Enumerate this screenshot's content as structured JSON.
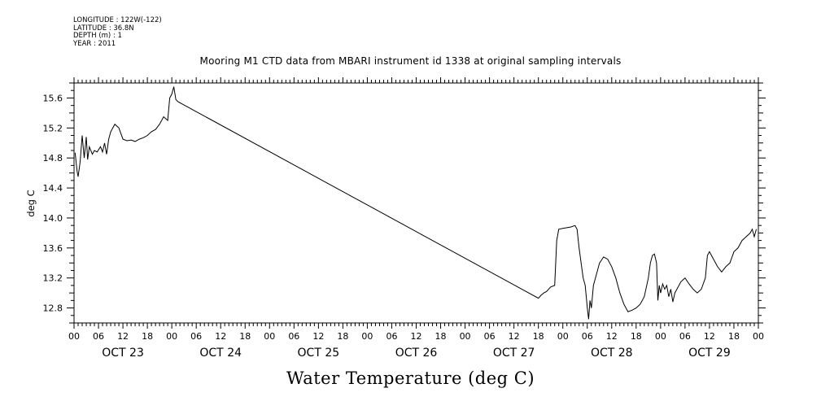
{
  "meta": {
    "longitude": "LONGITUDE : 122W(-122)",
    "latitude": "LATITUDE : 36.8N",
    "depth": "DEPTH (m) : 1",
    "year": "YEAR : 2011"
  },
  "chart_data": {
    "type": "line",
    "title": "Mooring M1 CTD data from MBARI instrument id 1338 at original sampling intervals",
    "xlabel": "Water Temperature (deg C)",
    "ylabel": "deg C",
    "ylim": [
      12.6,
      15.8
    ],
    "yticks": [
      "12.8",
      "13.2",
      "13.6",
      "14.0",
      "14.4",
      "14.8",
      "15.2",
      "15.6"
    ],
    "xlim": [
      "2011-10-23 00:00",
      "2011-10-30 00:00"
    ],
    "hour_tick_labels": [
      "00",
      "06",
      "12",
      "18"
    ],
    "day_labels": [
      "OCT 23",
      "OCT 24",
      "OCT 25",
      "OCT 26",
      "OCT 27",
      "OCT 28",
      "OCT 29"
    ],
    "grid": false,
    "series": [
      {
        "color": "#000000",
        "points": [
          [
            "2011-10-23 00:15",
            14.87
          ],
          [
            "2011-10-23 00:45",
            14.62
          ],
          [
            "2011-10-23 01:00",
            14.55
          ],
          [
            "2011-10-23 01:30",
            14.75
          ],
          [
            "2011-10-23 02:00",
            15.1
          ],
          [
            "2011-10-23 02:30",
            14.8
          ],
          [
            "2011-10-23 03:00",
            15.08
          ],
          [
            "2011-10-23 03:20",
            14.78
          ],
          [
            "2011-10-23 03:45",
            14.95
          ],
          [
            "2011-10-23 04:30",
            14.85
          ],
          [
            "2011-10-23 05:00",
            14.9
          ],
          [
            "2011-10-23 05:40",
            14.88
          ],
          [
            "2011-10-23 06:30",
            14.95
          ],
          [
            "2011-10-23 07:00",
            14.88
          ],
          [
            "2011-10-23 07:30",
            15.0
          ],
          [
            "2011-10-23 08:00",
            14.85
          ],
          [
            "2011-10-23 08:30",
            15.05
          ],
          [
            "2011-10-23 09:00",
            15.15
          ],
          [
            "2011-10-23 09:30",
            15.2
          ],
          [
            "2011-10-23 10:00",
            15.25
          ],
          [
            "2011-10-23 11:00",
            15.2
          ],
          [
            "2011-10-23 12:00",
            15.05
          ],
          [
            "2011-10-23 13:00",
            15.03
          ],
          [
            "2011-10-23 14:00",
            15.04
          ],
          [
            "2011-10-23 15:00",
            15.02
          ],
          [
            "2011-10-23 16:00",
            15.05
          ],
          [
            "2011-10-23 17:00",
            15.07
          ],
          [
            "2011-10-23 18:00",
            15.1
          ],
          [
            "2011-10-23 19:00",
            15.15
          ],
          [
            "2011-10-23 20:00",
            15.18
          ],
          [
            "2011-10-23 21:00",
            15.25
          ],
          [
            "2011-10-23 22:00",
            15.35
          ],
          [
            "2011-10-23 23:00",
            15.3
          ],
          [
            "2011-10-23 23:30",
            15.6
          ],
          [
            "2011-10-24 00:00",
            15.65
          ],
          [
            "2011-10-24 00:30",
            15.75
          ],
          [
            "2011-10-24 01:00",
            15.58
          ],
          [
            "2011-10-24 01:30",
            15.55
          ],
          [
            "2011-10-27 18:00",
            12.93
          ],
          [
            "2011-10-27 18:40",
            12.97
          ],
          [
            "2011-10-27 19:20",
            13.0
          ],
          [
            "2011-10-27 20:00",
            13.02
          ],
          [
            "2011-10-27 21:00",
            13.08
          ],
          [
            "2011-10-27 22:00",
            13.1
          ],
          [
            "2011-10-27 22:30",
            13.7
          ],
          [
            "2011-10-27 23:00",
            13.85
          ],
          [
            "2011-10-28 00:00",
            13.86
          ],
          [
            "2011-10-28 01:00",
            13.87
          ],
          [
            "2011-10-28 02:00",
            13.88
          ],
          [
            "2011-10-28 03:00",
            13.9
          ],
          [
            "2011-10-28 03:30",
            13.85
          ],
          [
            "2011-10-28 04:00",
            13.6
          ],
          [
            "2011-10-28 04:30",
            13.4
          ],
          [
            "2011-10-28 05:00",
            13.2
          ],
          [
            "2011-10-28 05:30",
            13.1
          ],
          [
            "2011-10-28 06:00",
            12.8
          ],
          [
            "2011-10-28 06:20",
            12.65
          ],
          [
            "2011-10-28 06:40",
            12.9
          ],
          [
            "2011-10-28 07:00",
            12.8
          ],
          [
            "2011-10-28 07:30",
            13.1
          ],
          [
            "2011-10-28 08:00",
            13.2
          ],
          [
            "2011-10-28 09:00",
            13.4
          ],
          [
            "2011-10-28 10:00",
            13.48
          ],
          [
            "2011-10-28 11:00",
            13.45
          ],
          [
            "2011-10-28 12:00",
            13.35
          ],
          [
            "2011-10-28 13:00",
            13.2
          ],
          [
            "2011-10-28 14:00",
            13.0
          ],
          [
            "2011-10-28 15:00",
            12.85
          ],
          [
            "2011-10-28 16:00",
            12.75
          ],
          [
            "2011-10-28 17:00",
            12.77
          ],
          [
            "2011-10-28 18:00",
            12.8
          ],
          [
            "2011-10-28 19:00",
            12.85
          ],
          [
            "2011-10-28 20:00",
            12.95
          ],
          [
            "2011-10-28 21:00",
            13.2
          ],
          [
            "2011-10-28 21:30",
            13.4
          ],
          [
            "2011-10-28 22:00",
            13.5
          ],
          [
            "2011-10-28 22:30",
            13.52
          ],
          [
            "2011-10-28 23:00",
            13.4
          ],
          [
            "2011-10-28 23:20",
            12.9
          ],
          [
            "2011-10-28 23:40",
            13.1
          ],
          [
            "2011-10-29 00:00",
            13.0
          ],
          [
            "2011-10-29 00:30",
            13.12
          ],
          [
            "2011-10-29 01:00",
            13.05
          ],
          [
            "2011-10-29 01:30",
            13.1
          ],
          [
            "2011-10-29 02:00",
            12.95
          ],
          [
            "2011-10-29 02:30",
            13.05
          ],
          [
            "2011-10-29 03:00",
            12.88
          ],
          [
            "2011-10-29 03:30",
            13.0
          ],
          [
            "2011-10-29 04:00",
            13.05
          ],
          [
            "2011-10-29 05:00",
            13.15
          ],
          [
            "2011-10-29 06:00",
            13.2
          ],
          [
            "2011-10-29 07:00",
            13.12
          ],
          [
            "2011-10-29 08:00",
            13.05
          ],
          [
            "2011-10-29 09:00",
            13.0
          ],
          [
            "2011-10-29 10:00",
            13.05
          ],
          [
            "2011-10-29 11:00",
            13.2
          ],
          [
            "2011-10-29 11:30",
            13.5
          ],
          [
            "2011-10-29 12:00",
            13.55
          ],
          [
            "2011-10-29 13:00",
            13.45
          ],
          [
            "2011-10-29 14:00",
            13.35
          ],
          [
            "2011-10-29 15:00",
            13.28
          ],
          [
            "2011-10-29 16:00",
            13.35
          ],
          [
            "2011-10-29 17:00",
            13.4
          ],
          [
            "2011-10-29 18:00",
            13.55
          ],
          [
            "2011-10-29 19:00",
            13.6
          ],
          [
            "2011-10-29 20:00",
            13.7
          ],
          [
            "2011-10-29 21:00",
            13.75
          ],
          [
            "2011-10-29 22:00",
            13.8
          ],
          [
            "2011-10-29 22:30",
            13.85
          ],
          [
            "2011-10-29 23:00",
            13.75
          ],
          [
            "2011-10-29 23:30",
            13.85
          ]
        ]
      }
    ]
  }
}
